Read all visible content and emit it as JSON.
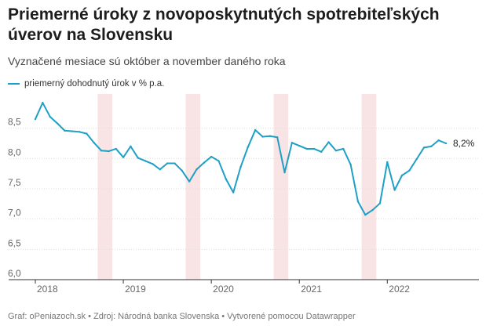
{
  "header": {
    "title": "Priemerné úroky z novoposkytnutých spotrebiteľských úverov na Slovensku",
    "subtitle": "Vyznačené mesiace sú október a november daného roka"
  },
  "colors": {
    "line": "#1ea0c6",
    "band": "#f8e4e4",
    "grid": "#dddddd",
    "axis": "#333333"
  },
  "footer": {
    "source": "Graf: oPeniazoch.sk • Zdroj: Národná banka Slovenska • Vytvorené pomocou Datawrapper"
  },
  "chart_data": {
    "type": "line",
    "series": [
      {
        "name": "priemerný dohodnutý úrok v % p.a.",
        "end_label": "8,2%",
        "values": [
          8.65,
          8.92,
          8.69,
          8.58,
          8.46,
          8.45,
          8.44,
          8.41,
          8.26,
          8.13,
          8.12,
          8.16,
          8.02,
          8.2,
          8.01,
          7.96,
          7.91,
          7.82,
          7.92,
          7.92,
          7.8,
          7.62,
          7.82,
          7.93,
          8.03,
          7.96,
          7.66,
          7.44,
          7.86,
          8.19,
          8.47,
          8.36,
          8.37,
          8.35,
          7.77,
          8.26,
          8.21,
          8.16,
          8.16,
          8.11,
          8.27,
          8.13,
          8.16,
          7.9,
          7.29,
          7.07,
          7.15,
          7.26,
          7.94,
          7.48,
          7.72,
          7.8,
          7.99,
          8.18,
          8.2,
          8.3,
          8.25
        ]
      }
    ],
    "x_start": "2018-01",
    "x_end": "2022-09",
    "x_ticks": [
      "2018",
      "2019",
      "2020",
      "2021",
      "2022"
    ],
    "y_ticks": [
      "6,0",
      "6,5",
      "7,0",
      "7,5",
      "8,0",
      "8,5"
    ],
    "ylim": [
      6.0,
      9.0
    ],
    "highlight_bands": [
      [
        "2018-10",
        "2018-11"
      ],
      [
        "2019-10",
        "2019-11"
      ],
      [
        "2020-10",
        "2020-11"
      ],
      [
        "2021-10",
        "2021-11"
      ]
    ],
    "grid": true,
    "legend_position": "top-left"
  }
}
